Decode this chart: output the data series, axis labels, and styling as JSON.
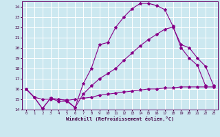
{
  "xlabel": "Windchill (Refroidissement éolien,°C)",
  "bg_color": "#cce8f0",
  "grid_color": "#ffffff",
  "line_color": "#880088",
  "xlim": [
    -0.5,
    23.5
  ],
  "ylim": [
    14,
    24.5
  ],
  "yticks": [
    14,
    15,
    16,
    17,
    18,
    19,
    20,
    21,
    22,
    23,
    24
  ],
  "xticks": [
    0,
    1,
    2,
    3,
    4,
    5,
    6,
    7,
    8,
    9,
    10,
    11,
    12,
    13,
    14,
    15,
    16,
    17,
    18,
    19,
    20,
    21,
    22,
    23
  ],
  "line1_x": [
    0,
    1,
    2,
    3,
    4,
    5,
    6,
    7,
    8,
    9,
    10,
    11,
    12,
    13,
    14,
    15,
    16,
    17,
    18,
    19,
    20,
    21,
    22
  ],
  "line1_y": [
    16.0,
    15.2,
    14.1,
    15.1,
    15.0,
    14.9,
    14.2,
    16.5,
    18.0,
    20.3,
    20.5,
    22.0,
    23.0,
    23.8,
    24.3,
    24.3,
    24.1,
    23.7,
    22.1,
    20.0,
    19.0,
    18.3,
    16.3
  ],
  "line2_x": [
    0,
    1,
    2,
    3,
    4,
    5,
    6,
    7,
    8,
    9,
    10,
    11,
    12,
    13,
    14,
    15,
    16,
    17,
    18,
    19,
    20,
    21,
    22,
    23
  ],
  "line2_y": [
    16.0,
    15.2,
    14.1,
    15.1,
    14.8,
    14.8,
    14.2,
    15.5,
    16.3,
    17.0,
    17.5,
    18.0,
    18.8,
    19.5,
    20.2,
    20.8,
    21.3,
    21.8,
    22.0,
    20.3,
    20.0,
    19.0,
    18.2,
    16.3
  ],
  "line3_x": [
    0,
    1,
    2,
    3,
    4,
    5,
    6,
    7,
    8,
    9,
    10,
    11,
    12,
    13,
    14,
    15,
    16,
    17,
    18,
    19,
    20,
    21,
    22,
    23
  ],
  "line3_y": [
    16.0,
    15.2,
    15.0,
    15.0,
    15.0,
    14.9,
    15.0,
    15.1,
    15.2,
    15.4,
    15.5,
    15.6,
    15.7,
    15.8,
    15.9,
    16.0,
    16.0,
    16.1,
    16.1,
    16.2,
    16.2,
    16.2,
    16.2,
    16.2
  ]
}
